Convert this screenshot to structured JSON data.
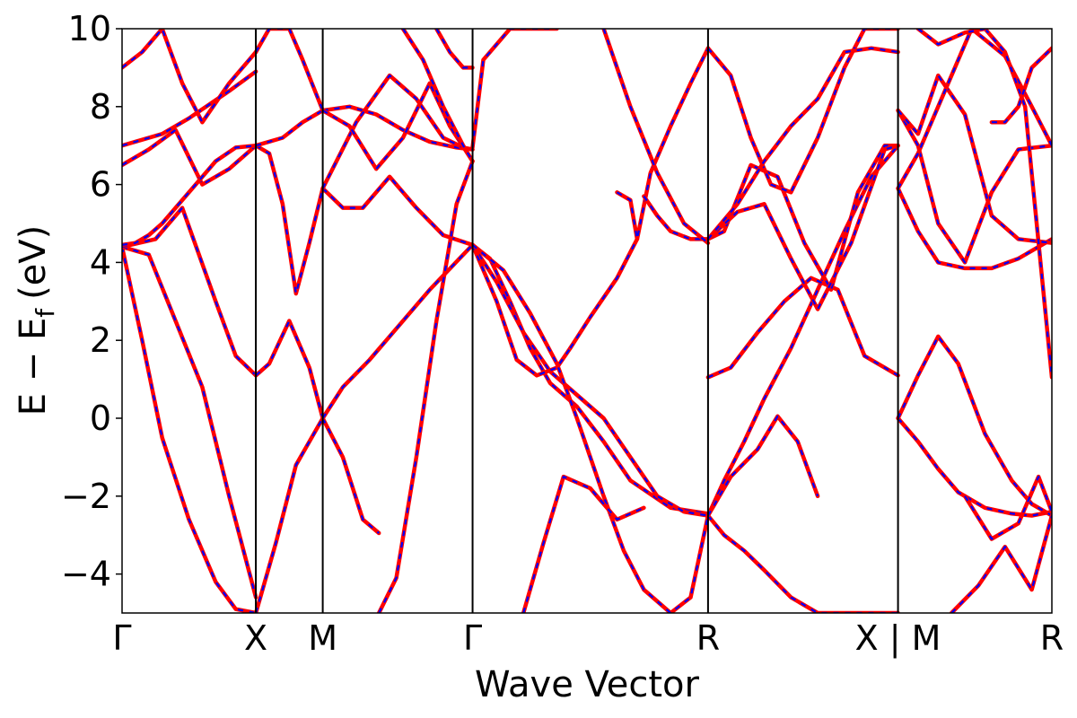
{
  "chart_data": {
    "type": "line",
    "title": "",
    "xlabel": "Wave Vector",
    "ylabel": "E − E_f (eV)",
    "ylabel_parts": {
      "main": "E − E",
      "sub": "f",
      "unit": "(eV)"
    },
    "ylim": [
      -5,
      10
    ],
    "yticks": [
      -4,
      -2,
      0,
      2,
      4,
      6,
      8,
      10
    ],
    "ytick_labels": [
      "−4",
      "−2",
      "0",
      "2",
      "4",
      "6",
      "8",
      "10"
    ],
    "xlim": [
      0,
      6.95
    ],
    "kpoint_positions": [
      0,
      1.0,
      1.5,
      2.62,
      4.38,
      5.8,
      6.95
    ],
    "kpoint_labels": [
      "Γ",
      "X",
      "M",
      "Γ",
      "R",
      "X | M",
      "R"
    ],
    "grid": false,
    "legend": "none",
    "colors": {
      "solid": "#ff0000",
      "dashed": "#0000ff",
      "frame": "#000000"
    },
    "bands": [
      {
        "x": [
          0,
          0.15,
          0.3,
          0.5,
          0.7,
          0.85,
          1.0
        ],
        "y": [
          4.4,
          2.0,
          -0.5,
          -2.6,
          -4.2,
          -4.9,
          -5.0
        ]
      },
      {
        "x": [
          0,
          0.2,
          0.4,
          0.6,
          0.8,
          1.0
        ],
        "y": [
          4.4,
          4.2,
          2.5,
          0.8,
          -2.0,
          -4.6
        ]
      },
      {
        "x": [
          0,
          0.25,
          0.45,
          0.7,
          0.85,
          1.0
        ],
        "y": [
          4.4,
          4.6,
          5.4,
          3.0,
          1.6,
          1.1
        ]
      },
      {
        "x": [
          0,
          0.2,
          0.4,
          0.6,
          0.8,
          1.0
        ],
        "y": [
          6.5,
          6.9,
          7.4,
          6.0,
          6.4,
          7.0
        ]
      },
      {
        "x": [
          0,
          0.3,
          0.5,
          0.8,
          1.0
        ],
        "y": [
          7.0,
          7.3,
          7.7,
          8.4,
          8.9
        ]
      },
      {
        "x": [
          0,
          0.15,
          0.3,
          0.45,
          0.6,
          0.8,
          1.0
        ],
        "y": [
          9.0,
          9.4,
          10.0,
          8.6,
          7.6,
          8.6,
          9.4
        ]
      },
      {
        "x": [
          0,
          0.1,
          0.2,
          0.3,
          0.4,
          0.55,
          0.7,
          0.85,
          1.0
        ],
        "y": [
          4.45,
          4.5,
          4.7,
          5.0,
          5.4,
          6.0,
          6.6,
          6.95,
          7.0
        ]
      },
      {
        "x": [
          1.0,
          1.1,
          1.25,
          1.4,
          1.5
        ],
        "y": [
          1.1,
          1.4,
          2.5,
          1.3,
          0.0
        ]
      },
      {
        "x": [
          1.0,
          1.1,
          1.25,
          1.35,
          1.5
        ],
        "y": [
          9.4,
          10.0,
          10.0,
          9.2,
          7.9
        ]
      },
      {
        "x": [
          1.0,
          1.15,
          1.3,
          1.5
        ],
        "y": [
          -5.0,
          -3.2,
          -1.2,
          0.0
        ]
      },
      {
        "x": [
          1.0,
          1.1,
          1.2,
          1.3,
          1.4,
          1.5
        ],
        "y": [
          7.0,
          6.8,
          5.5,
          3.2,
          4.5,
          5.9
        ]
      },
      {
        "x": [
          1.0,
          1.2,
          1.35,
          1.5
        ],
        "y": [
          7.0,
          7.2,
          7.6,
          7.9
        ]
      },
      {
        "x": [
          1.5,
          1.65,
          1.8,
          1.92
        ],
        "y": [
          0.0,
          -1.0,
          -2.6,
          -2.95
        ]
      },
      {
        "x": [
          1.5,
          1.65,
          1.85,
          2.05,
          2.3,
          2.62
        ],
        "y": [
          0.0,
          0.8,
          1.5,
          2.3,
          3.3,
          4.45
        ]
      },
      {
        "x": [
          1.5,
          1.65,
          1.8,
          2.0,
          2.2,
          2.4,
          2.62
        ],
        "y": [
          5.9,
          5.4,
          5.4,
          6.2,
          5.4,
          4.7,
          4.45
        ]
      },
      {
        "x": [
          1.5,
          1.7,
          1.9,
          2.1,
          2.3,
          2.5,
          2.62
        ],
        "y": [
          7.9,
          8.0,
          7.8,
          7.4,
          7.1,
          6.95,
          6.9
        ]
      },
      {
        "x": [
          1.5,
          1.75,
          2.0,
          2.2,
          2.4,
          2.55,
          2.62
        ],
        "y": [
          5.9,
          7.6,
          8.8,
          8.2,
          7.2,
          6.95,
          6.9
        ]
      },
      {
        "x": [
          1.5,
          1.7,
          1.9,
          2.1,
          2.3,
          2.45,
          2.62
        ],
        "y": [
          7.9,
          7.5,
          6.4,
          7.2,
          8.6,
          7.5,
          6.6
        ]
      },
      {
        "x": [
          1.92,
          2.05,
          2.2,
          2.35,
          2.5,
          2.62
        ],
        "y": [
          -5.0,
          -4.1,
          -1.0,
          2.5,
          5.5,
          6.6
        ]
      },
      {
        "x": [
          2.1,
          2.25,
          2.4,
          2.55,
          2.62
        ],
        "y": [
          10.0,
          9.2,
          8.0,
          7.0,
          6.6
        ]
      },
      {
        "x": [
          2.35,
          2.45,
          2.55,
          2.62
        ],
        "y": [
          10.0,
          9.4,
          9.0,
          9.0
        ]
      },
      {
        "x": [
          2.62,
          2.75,
          2.9,
          3.05,
          3.2,
          3.4,
          3.6,
          3.8,
          4.1,
          4.38
        ],
        "y": [
          4.45,
          4.1,
          3.0,
          1.8,
          0.9,
          0.3,
          -0.6,
          -1.6,
          -2.3,
          -2.45
        ]
      },
      {
        "x": [
          2.62,
          2.8,
          3.0,
          3.2,
          3.4,
          3.6,
          3.8,
          4.0,
          4.2,
          4.38
        ],
        "y": [
          4.45,
          3.5,
          2.2,
          1.2,
          0.6,
          0.0,
          -1.0,
          -2.0,
          -2.4,
          -2.5
        ]
      },
      {
        "x": [
          2.62,
          2.8,
          2.95,
          3.1,
          3.25,
          3.35
        ],
        "y": [
          4.45,
          3.0,
          1.5,
          1.1,
          1.3,
          1.8
        ]
      },
      {
        "x": [
          3.35,
          3.5,
          3.7,
          3.85
        ],
        "y": [
          1.8,
          2.6,
          3.6,
          4.6
        ]
      },
      {
        "x": [
          2.62,
          2.85,
          3.05,
          3.25,
          3.4,
          3.6,
          3.75,
          3.9,
          4.1,
          4.25,
          4.38
        ],
        "y": [
          4.45,
          3.8,
          2.7,
          1.4,
          0.0,
          -2.0,
          -3.4,
          -4.4,
          -5.0,
          -4.6,
          -2.5
        ]
      },
      {
        "x": [
          2.62,
          2.7,
          2.9,
          3.1,
          3.25
        ],
        "y": [
          6.95,
          9.2,
          10.0,
          10.0,
          10.0
        ]
      },
      {
        "x": [
          3.0,
          3.15,
          3.3,
          3.5,
          3.7,
          3.9
        ],
        "y": [
          -5.0,
          -3.2,
          -1.5,
          -1.8,
          -2.6,
          -2.3
        ]
      },
      {
        "x": [
          3.7,
          3.8,
          3.85,
          3.95,
          4.1,
          4.25,
          4.38
        ],
        "y": [
          5.8,
          5.6,
          4.6,
          6.3,
          7.5,
          8.6,
          9.5
        ]
      },
      {
        "x": [
          3.9,
          4.0,
          4.1,
          4.25,
          4.38
        ],
        "y": [
          5.7,
          5.2,
          4.8,
          4.6,
          4.6
        ]
      },
      {
        "x": [
          3.6,
          3.8,
          4.0,
          4.2,
          4.38
        ],
        "y": [
          10.0,
          8.0,
          6.3,
          5.0,
          4.5
        ]
      },
      {
        "x": [
          4.38,
          4.5,
          4.65,
          4.8,
          5.0,
          5.2,
          5.4,
          5.6,
          5.8
        ],
        "y": [
          -2.5,
          -1.6,
          -0.6,
          0.5,
          1.8,
          3.3,
          4.8,
          6.2,
          7.0
        ]
      },
      {
        "x": [
          4.38,
          4.5,
          4.65,
          4.8,
          5.0,
          5.2,
          5.4,
          5.6,
          5.8
        ],
        "y": [
          -2.5,
          -3.0,
          -3.4,
          -3.9,
          -4.6,
          -5.0,
          -5.0,
          -5.0,
          -5.0
        ]
      },
      {
        "x": [
          4.38,
          4.55,
          4.75,
          4.9,
          5.05,
          5.2
        ],
        "y": [
          -2.5,
          -1.5,
          -0.8,
          0.05,
          -0.6,
          -2.0
        ]
      },
      {
        "x": [
          4.38,
          4.55,
          4.75,
          4.95,
          5.15,
          5.35,
          5.55,
          5.8
        ],
        "y": [
          1.05,
          1.3,
          2.2,
          3.0,
          3.6,
          3.3,
          1.6,
          1.1
        ]
      },
      {
        "x": [
          4.38,
          4.5,
          4.7,
          4.9,
          5.1,
          5.3,
          5.5,
          5.7,
          5.8
        ],
        "y": [
          4.6,
          4.8,
          6.5,
          6.2,
          4.5,
          3.3,
          5.8,
          7.0,
          7.0
        ]
      },
      {
        "x": [
          4.38,
          4.6,
          4.8,
          5.0,
          5.2,
          5.45,
          5.7,
          5.8
        ],
        "y": [
          4.6,
          5.3,
          5.5,
          4.1,
          2.8,
          4.5,
          6.9,
          7.0
        ]
      },
      {
        "x": [
          4.38,
          4.55,
          4.7,
          4.85,
          5.0,
          5.2,
          5.4,
          5.55,
          5.8
        ],
        "y": [
          9.5,
          8.8,
          7.2,
          6.0,
          5.8,
          7.2,
          9.0,
          10.0,
          10.0
        ]
      },
      {
        "x": [
          4.38,
          4.6,
          4.8,
          5.0,
          5.2,
          5.4,
          5.6,
          5.8
        ],
        "y": [
          4.6,
          5.5,
          6.6,
          7.5,
          8.2,
          9.4,
          9.5,
          9.4
        ]
      },
      {
        "x": [
          5.8,
          5.95,
          6.1,
          6.25,
          6.45,
          6.65,
          6.8,
          6.95
        ],
        "y": [
          0.0,
          -0.6,
          -1.3,
          -1.9,
          -2.3,
          -2.45,
          -2.5,
          -2.4
        ]
      },
      {
        "x": [
          5.8,
          5.95,
          6.1,
          6.25,
          6.45,
          6.65,
          6.8,
          6.95
        ],
        "y": [
          0.0,
          1.1,
          2.1,
          1.4,
          -0.4,
          -1.6,
          -2.2,
          -2.5
        ]
      },
      {
        "x": [
          5.8,
          5.95,
          6.1,
          6.3,
          6.5,
          6.7,
          6.95
        ],
        "y": [
          5.9,
          4.8,
          4.0,
          3.85,
          3.85,
          4.1,
          4.6
        ]
      },
      {
        "x": [
          5.8,
          5.95,
          6.1,
          6.3,
          6.5,
          6.7,
          6.95
        ],
        "y": [
          7.9,
          7.0,
          5.0,
          4.0,
          5.8,
          6.9,
          7.0
        ]
      },
      {
        "x": [
          5.8,
          5.95,
          6.1,
          6.3,
          6.5,
          6.7,
          6.95
        ],
        "y": [
          7.9,
          7.3,
          8.8,
          7.8,
          5.2,
          4.6,
          4.5
        ]
      },
      {
        "x": [
          5.8,
          5.95,
          6.1,
          6.35,
          6.6,
          6.8,
          6.95
        ],
        "y": [
          5.9,
          6.8,
          8.0,
          10.0,
          9.3,
          8.0,
          7.0
        ]
      },
      {
        "x": [
          6.2,
          6.4,
          6.6,
          6.8,
          6.95
        ],
        "y": [
          -5.0,
          -4.3,
          -3.3,
          -4.4,
          -2.5
        ]
      },
      {
        "x": [
          6.3,
          6.5,
          6.7,
          6.85,
          6.95
        ],
        "y": [
          -2.0,
          -3.1,
          -2.7,
          -1.5,
          -2.4
        ]
      },
      {
        "x": [
          6.45,
          6.6,
          6.75,
          6.95
        ],
        "y": [
          10.0,
          9.4,
          8.0,
          1.05
        ]
      },
      {
        "x": [
          6.5,
          6.6,
          6.7,
          6.8,
          6.95
        ],
        "y": [
          7.6,
          7.6,
          8.0,
          9.0,
          9.5
        ]
      },
      {
        "x": [
          5.95,
          6.1,
          6.3,
          6.45
        ],
        "y": [
          10.0,
          9.6,
          9.9,
          10.0
        ]
      }
    ]
  }
}
